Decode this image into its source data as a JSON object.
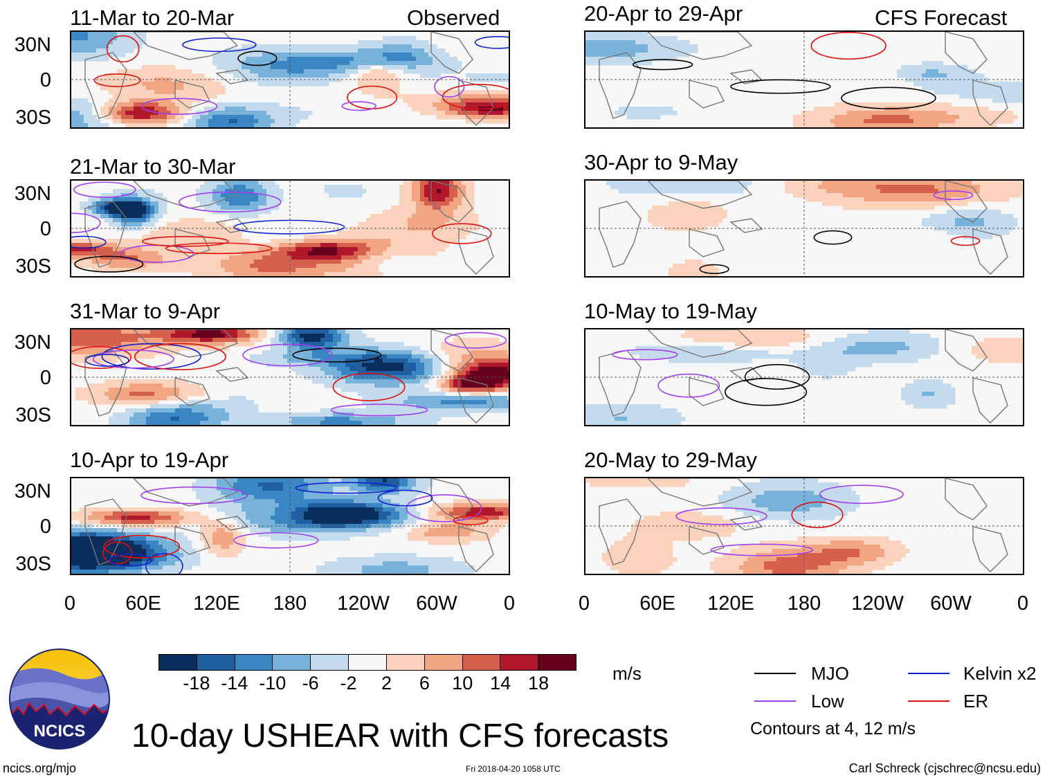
{
  "chart_data": {
    "type": "heatmap",
    "title": "10-day USHEAR with CFS forecasts",
    "units": "m/s",
    "columns": [
      {
        "label": "Observed",
        "panels": [
          "11-Mar to 20-Mar",
          "21-Mar to 30-Mar",
          "31-Mar to 9-Apr",
          "10-Apr to 19-Apr"
        ]
      },
      {
        "label": "CFS Forecast",
        "panels": [
          "20-Apr to 29-Apr",
          "30-Apr to 9-May",
          "10-May to 19-May",
          "20-May to 29-May"
        ]
      }
    ],
    "lat_ticks": [
      "30N",
      "0",
      "30S"
    ],
    "lon_ticks": [
      "0",
      "60E",
      "120E",
      "180",
      "120W",
      "60W",
      "0"
    ],
    "colorbar": {
      "ticks": [
        "-18",
        "-14",
        "-10",
        "-6",
        "-2",
        "2",
        "6",
        "10",
        "14",
        "18"
      ],
      "colors": [
        "#0a2e5c",
        "#1f5fa0",
        "#3a86c2",
        "#77b2da",
        "#c4dbed",
        "#f7f7f7",
        "#fbd3bd",
        "#f2a582",
        "#d6604d",
        "#b2182b",
        "#67001f"
      ]
    },
    "legend": [
      {
        "label": "MJO",
        "color": "#000000"
      },
      {
        "label": "Kelvin x2",
        "color": "#1020d0"
      },
      {
        "label": "Low",
        "color": "#a040f0"
      },
      {
        "label": "ER",
        "color": "#e01010"
      }
    ],
    "contour_note": "Contours at 4, 12 m/s"
  },
  "logo": {
    "text": "NCICS"
  },
  "footer": {
    "url": "ncics.org/mjo",
    "stamp": "Fri 2018-04-20 1058 UTC",
    "author": "Carl Schreck (cjschrec@ncsu.edu)"
  }
}
